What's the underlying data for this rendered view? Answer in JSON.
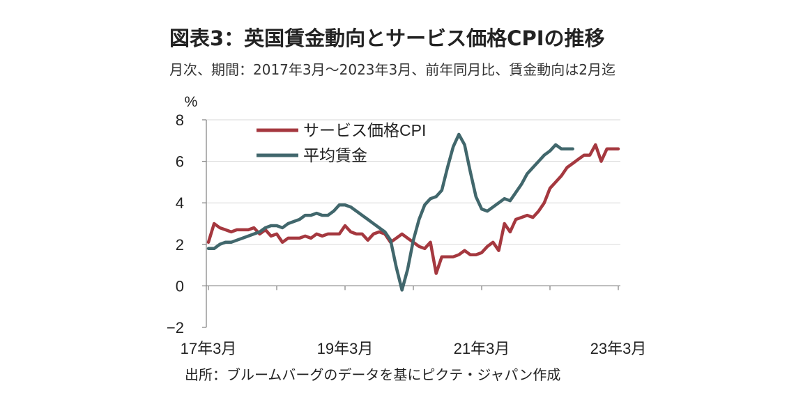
{
  "header": {
    "title": "図表3：英国賃金動向とサービス価格CPIの推移",
    "subtitle": "月次、期間：2017年3月～2023年3月、前年同月比、賃金動向は2月迄"
  },
  "footer": {
    "source": "出所：ブルームバーグのデータを基にピクテ・ジャパン作成"
  },
  "chart_data": {
    "type": "line",
    "ylabel": "%",
    "ylim": [
      -2,
      8
    ],
    "yticks": [
      -2,
      0,
      2,
      4,
      6,
      8
    ],
    "xticks": [
      {
        "label": "17年3月",
        "index": 0
      },
      {
        "label": "19年3月",
        "index": 24
      },
      {
        "label": "21年3月",
        "index": 48
      },
      {
        "label": "23年3月",
        "index": 72
      }
    ],
    "legend": "top-left",
    "grid": "horizontal",
    "series": [
      {
        "name": "サービス価格CPI",
        "color": "#a5383f",
        "values": [
          2.1,
          3.0,
          2.8,
          2.7,
          2.6,
          2.7,
          2.7,
          2.7,
          2.8,
          2.5,
          2.7,
          2.4,
          2.5,
          2.1,
          2.3,
          2.3,
          2.3,
          2.4,
          2.3,
          2.5,
          2.4,
          2.5,
          2.5,
          2.5,
          2.9,
          2.6,
          2.5,
          2.5,
          2.2,
          2.5,
          2.6,
          2.5,
          2.1,
          2.3,
          2.5,
          2.3,
          2.1,
          1.9,
          1.8,
          2.1,
          0.6,
          1.4,
          1.4,
          1.4,
          1.5,
          1.7,
          1.5,
          1.5,
          1.6,
          1.9,
          2.1,
          1.7,
          3.0,
          2.6,
          3.2,
          3.3,
          3.4,
          3.3,
          3.6,
          4.0,
          4.7,
          5.0,
          5.3,
          5.7,
          5.9,
          6.1,
          6.3,
          6.3,
          6.8,
          6.0,
          6.6,
          6.6,
          6.6
        ]
      },
      {
        "name": "平均賃金",
        "color": "#41676c",
        "values": [
          1.8,
          1.8,
          2.0,
          2.1,
          2.1,
          2.2,
          2.3,
          2.4,
          2.5,
          2.6,
          2.8,
          2.9,
          2.9,
          2.8,
          3.0,
          3.1,
          3.2,
          3.4,
          3.4,
          3.5,
          3.4,
          3.4,
          3.6,
          3.9,
          3.9,
          3.8,
          3.6,
          3.4,
          3.2,
          3.0,
          2.8,
          2.6,
          2.2,
          0.9,
          -0.2,
          0.8,
          2.2,
          3.2,
          3.9,
          4.2,
          4.3,
          4.6,
          5.7,
          6.7,
          7.3,
          6.8,
          5.5,
          4.3,
          3.7,
          3.6,
          3.8,
          4.0,
          4.2,
          4.1,
          4.5,
          4.9,
          5.4,
          5.7,
          6.0,
          6.3,
          6.5,
          6.8,
          6.6,
          6.6,
          6.6
        ]
      }
    ]
  }
}
